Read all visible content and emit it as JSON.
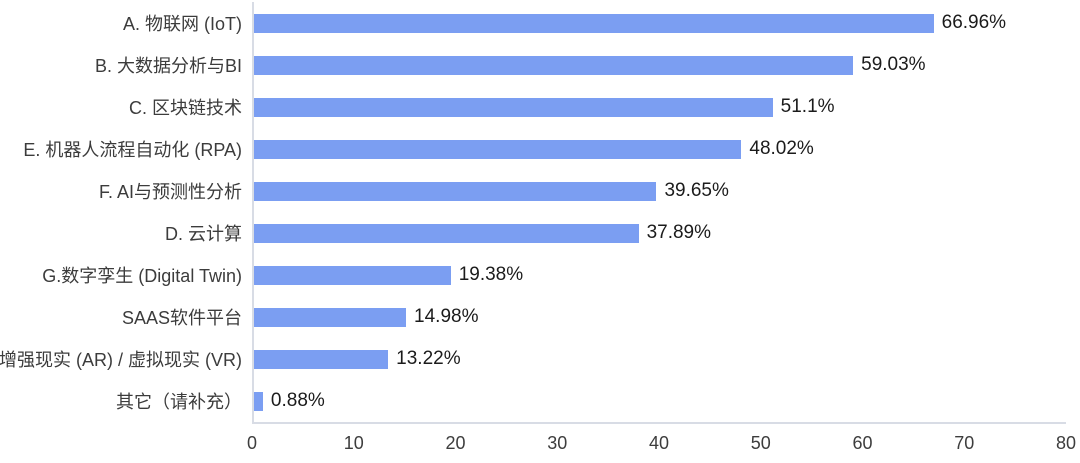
{
  "chart_data": {
    "type": "bar",
    "orientation": "horizontal",
    "categories": [
      "A. 物联网 (IoT)",
      "B. 大数据分析与BI",
      "C. 区块链技术",
      "E. 机器人流程自动化 (RPA)",
      "F. AI与预测性分析",
      "D. 云计算",
      "G.数字孪生 (Digital Twin)",
      "SAAS软件平台",
      "增强现实 (AR) / 虚拟现实 (VR)",
      "其它（请补充）"
    ],
    "values": [
      66.96,
      59.03,
      51.1,
      48.02,
      39.65,
      37.89,
      19.38,
      14.98,
      13.22,
      0.88
    ],
    "value_labels": [
      "66.96%",
      "59.03%",
      "51.1%",
      "48.02%",
      "39.65%",
      "37.89%",
      "19.38%",
      "14.98%",
      "13.22%",
      "0.88%"
    ],
    "x_ticks": [
      "0",
      "10",
      "20",
      "30",
      "40",
      "50",
      "60",
      "70",
      "80"
    ],
    "xlim": [
      0,
      80
    ],
    "grid": false,
    "legend": false,
    "bar_color": "#7b9ef2",
    "axis_line_color": "#d8dce5",
    "category_label_color": "#3c3c3c",
    "value_label_color": "#1b1b1b",
    "tick_label_color": "#3d3d3d"
  }
}
